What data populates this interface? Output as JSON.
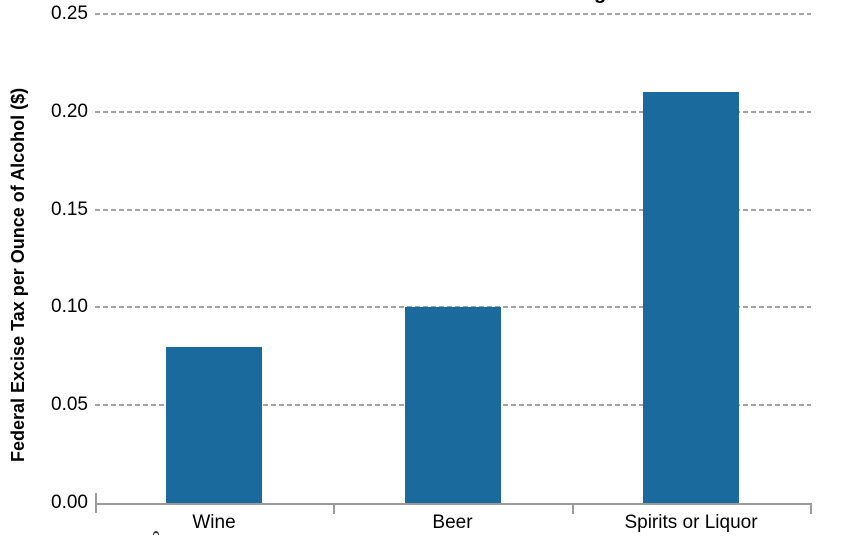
{
  "chart_data": {
    "type": "bar",
    "title_fragment": "g",
    "ylabel": "Federal Excise Tax per Ounce of Alcohol ($)",
    "xlabel": "",
    "categories": [
      "Wine",
      "Beer",
      "Spirits or Liquor"
    ],
    "values": [
      0.08,
      0.1,
      0.21
    ],
    "ylim": [
      0,
      0.25
    ],
    "ytick_step": 0.05,
    "ytick_labels": [
      "0.00",
      "0.05",
      "0.10",
      "0.15",
      "0.20",
      "0.25"
    ],
    "grid": "horizontal-dashed",
    "legend": "none",
    "colors": {
      "bar": "#1b6a9e",
      "axis": "#9b9b9b",
      "gridline": "#a3a3a3",
      "text": "#000000"
    }
  }
}
